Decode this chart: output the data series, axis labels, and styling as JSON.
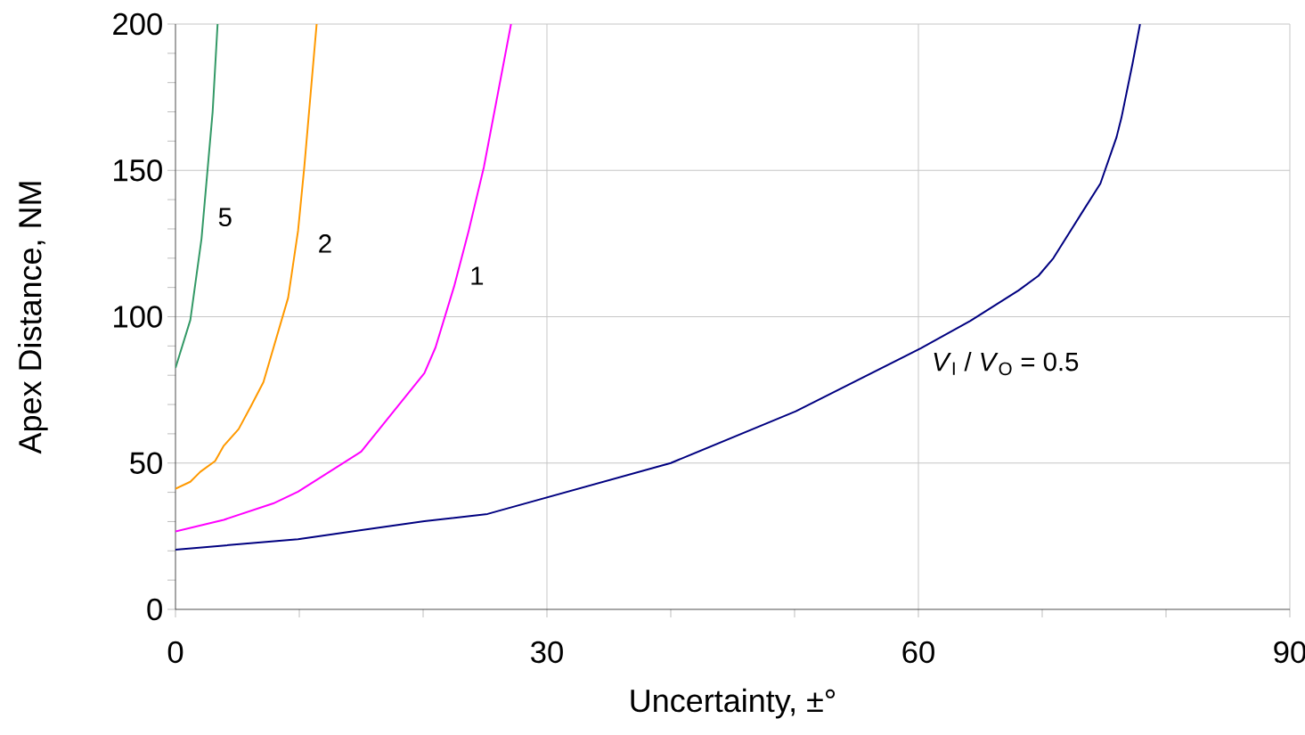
{
  "chart_data": {
    "type": "line",
    "xlabel": "Uncertainty, ±°",
    "ylabel": "Apex Distance, NM",
    "xlim": [
      0,
      90
    ],
    "ylim": [
      0,
      200
    ],
    "xticks": [
      0,
      {
        "value": 10,
        "label": null
      },
      {
        "value": 20,
        "label": null
      },
      30,
      {
        "value": 40,
        "label": null
      },
      {
        "value": 50,
        "label": null
      },
      60,
      {
        "value": 70,
        "label": null
      },
      {
        "value": 80,
        "label": null
      },
      90
    ],
    "yticks": [
      0,
      {
        "value": 10,
        "label": null
      },
      {
        "value": 20,
        "label": null
      },
      {
        "value": 30,
        "label": null
      },
      {
        "value": 40,
        "label": null
      },
      50,
      {
        "value": 60,
        "label": null
      },
      {
        "value": 70,
        "label": null
      },
      {
        "value": 80,
        "label": null
      },
      {
        "value": 90,
        "label": null
      },
      100,
      {
        "value": 110,
        "label": null
      },
      {
        "value": 120,
        "label": null
      },
      {
        "value": 130,
        "label": null
      },
      {
        "value": 140,
        "label": null
      },
      150,
      {
        "value": 160,
        "label": null
      },
      {
        "value": 170,
        "label": null
      },
      {
        "value": 180,
        "label": null
      },
      {
        "value": 190,
        "label": null
      },
      200
    ],
    "grid": true,
    "series": [
      {
        "name": "*V*$_{I}$ / *V*$_{O}$ = 0.5",
        "color": "#000080",
        "x": [
          0,
          9.9,
          14.9,
          20.1,
          25.2,
          40,
          50.1,
          60.2,
          64.2,
          68.1,
          69.7,
          70.9,
          73.2,
          74.7,
          76,
          76.4,
          77.3,
          77.9
        ],
        "values": [
          20.4,
          24,
          27,
          30.1,
          32.6,
          50,
          67.7,
          89.2,
          98.6,
          109,
          114,
          120,
          135.5,
          145.5,
          161.3,
          168,
          186.6,
          200
        ]
      },
      {
        "name": "1",
        "color": "#ff00ff",
        "x": [
          0,
          3.9,
          7.9,
          9.9,
          15,
          20.1,
          21,
          22.5,
          23.7,
          24.9,
          27.1
        ],
        "values": [
          26.6,
          30.6,
          36.2,
          40.2,
          53.9,
          80.7,
          89.5,
          110.3,
          129.7,
          151,
          200
        ]
      },
      {
        "name": "2",
        "color": "#ff9900",
        "x": [
          0,
          1.2,
          2,
          3.2,
          3.9,
          5.1,
          6.1,
          7.1,
          9.1,
          9.9,
          10.4,
          11.4
        ],
        "values": [
          41.2,
          43.6,
          47,
          50.7,
          55.9,
          61.6,
          69.5,
          77.6,
          106.5,
          129.4,
          151,
          200
        ]
      },
      {
        "name": "5",
        "color": "#339966",
        "x": [
          0,
          1.2,
          2.1,
          3,
          3.4
        ],
        "values": [
          82.5,
          98.9,
          126.6,
          170,
          200
        ]
      }
    ]
  }
}
